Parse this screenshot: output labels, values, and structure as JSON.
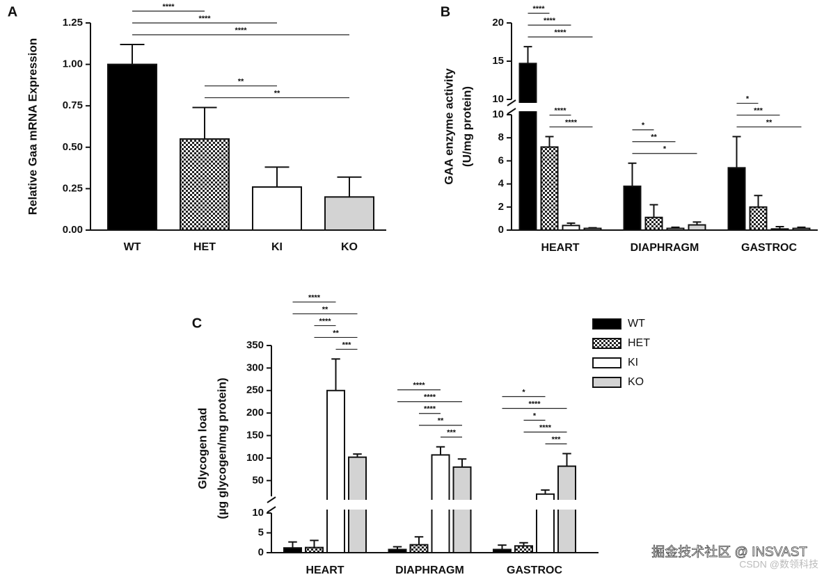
{
  "chart_data": [
    {
      "type": "bar",
      "panel": "A",
      "ylabel": [
        "Relative Gaa mRNA Expression"
      ],
      "categories": [
        "WT",
        "HET",
        "KI",
        "KO"
      ],
      "values": [
        1.0,
        0.55,
        0.26,
        0.2
      ],
      "errors": [
        0.12,
        0.19,
        0.12,
        0.12
      ],
      "colors": [
        "#000000",
        "#ffffff",
        "#ffffff",
        "#d3d3d3"
      ],
      "patterns": [
        null,
        "checkerboard",
        null,
        null
      ],
      "ylim": [
        0,
        1.25
      ],
      "yticks": [
        {
          "value": 0,
          "label": "0.00"
        },
        {
          "value": 0.25,
          "label": "0.25"
        },
        {
          "value": 0.5,
          "label": "0.50"
        },
        {
          "value": 0.75,
          "label": "0.75"
        },
        {
          "value": 1,
          "label": "1.00"
        },
        {
          "value": 1.25,
          "label": "1.25"
        }
      ],
      "annotations": [
        {
          "label": "****",
          "from": 0,
          "to": 1
        },
        {
          "label": "****",
          "from": 0,
          "to": 2
        },
        {
          "label": "****",
          "from": 0,
          "to": 3
        },
        {
          "label": "**",
          "from": 1,
          "to": 2
        },
        {
          "label": "**",
          "from": 1,
          "to": 3
        }
      ]
    },
    {
      "type": "grouped_bar",
      "panel": "B",
      "ylabel": [
        "GAA enzyme activity",
        "(U/mg protein)"
      ],
      "categories": [
        "HEART",
        "DIAPHRAGM",
        "GASTROC"
      ],
      "series": [
        {
          "color": "#000000",
          "values": [
            14.7,
            3.8,
            5.4
          ],
          "errors": [
            2.2,
            2.0,
            2.7
          ]
        },
        {
          "color": "#ffffff",
          "pattern": "checkerboard",
          "values": [
            7.2,
            1.1,
            2.0
          ],
          "errors": [
            0.9,
            1.1,
            1.0
          ]
        },
        {
          "color": "#ffffff",
          "values": [
            0.4,
            0.15,
            0.1
          ],
          "errors": [
            0.2,
            0.1,
            0.2
          ]
        },
        {
          "color": "#d3d3d3",
          "values": [
            0.15,
            0.45,
            0.15
          ],
          "errors": [
            0.05,
            0.25,
            0.1
          ]
        }
      ],
      "segments": [
        {
          "ylim": [
            0,
            10
          ],
          "yticks": [
            0,
            2,
            4,
            6,
            8,
            10
          ]
        },
        {
          "ylim": [
            10,
            20
          ],
          "yticks": [
            10,
            15,
            20
          ]
        }
      ],
      "annotations": [
        {
          "group": 0,
          "from": 0,
          "to": 1,
          "label": "****"
        },
        {
          "group": 0,
          "from": 0,
          "to": 2,
          "label": "****"
        },
        {
          "group": 0,
          "from": 0,
          "to": 3,
          "label": "****"
        },
        {
          "group": 0,
          "from": 1,
          "to": 2,
          "label": "****"
        },
        {
          "group": 0,
          "from": 1,
          "to": 3,
          "label": "****"
        },
        {
          "group": 1,
          "from": 0,
          "to": 1,
          "label": "*"
        },
        {
          "group": 1,
          "from": 0,
          "to": 2,
          "label": "**"
        },
        {
          "group": 1,
          "from": 0,
          "to": 3,
          "label": "*"
        },
        {
          "group": 2,
          "from": 0,
          "to": 1,
          "label": "*"
        },
        {
          "group": 2,
          "from": 0,
          "to": 2,
          "label": "***"
        },
        {
          "group": 2,
          "from": 0,
          "to": 3,
          "label": "**"
        }
      ]
    },
    {
      "type": "grouped_bar",
      "panel": "C",
      "ylabel": [
        "Glycogen load",
        "(µg glycogen/mg protein)"
      ],
      "categories": [
        "HEART",
        "DIAPHRAGM",
        "GASTROC"
      ],
      "series": [
        {
          "name": "WT",
          "color": "#000000",
          "values": [
            1.2,
            0.8,
            0.8
          ],
          "errors": [
            1.5,
            0.7,
            1.1
          ]
        },
        {
          "name": "HET",
          "color": "#ffffff",
          "pattern": "checkerboard",
          "values": [
            1.3,
            2.0,
            1.7
          ],
          "errors": [
            1.8,
            2.0,
            0.8
          ]
        },
        {
          "name": "KI",
          "color": "#ffffff",
          "values": [
            250,
            107,
            20
          ],
          "errors": [
            70,
            18,
            9
          ]
        },
        {
          "name": "KO",
          "color": "#d3d3d3",
          "values": [
            102,
            80,
            82
          ],
          "errors": [
            7,
            18,
            28
          ]
        }
      ],
      "segments": [
        {
          "ylim": [
            0,
            10
          ],
          "yticks": [
            0,
            5,
            10
          ]
        },
        {
          "ylim": [
            15,
            350
          ],
          "yticks": [
            50,
            100,
            150,
            200,
            250,
            300,
            350
          ]
        }
      ],
      "legend": "right",
      "annotations": [
        {
          "group": 0,
          "from": 0,
          "to": 2,
          "label": "****"
        },
        {
          "group": 0,
          "from": 0,
          "to": 3,
          "label": "**"
        },
        {
          "group": 0,
          "from": 1,
          "to": 2,
          "label": "****"
        },
        {
          "group": 0,
          "from": 1,
          "to": 3,
          "label": "**"
        },
        {
          "group": 0,
          "from": 2,
          "to": 3,
          "label": "***"
        },
        {
          "group": 1,
          "from": 0,
          "to": 2,
          "label": "****"
        },
        {
          "group": 1,
          "from": 0,
          "to": 3,
          "label": "****"
        },
        {
          "group": 1,
          "from": 1,
          "to": 2,
          "label": "****"
        },
        {
          "group": 1,
          "from": 1,
          "to": 3,
          "label": "**"
        },
        {
          "group": 1,
          "from": 2,
          "to": 3,
          "label": "***"
        },
        {
          "group": 2,
          "from": 0,
          "to": 2,
          "label": "*"
        },
        {
          "group": 2,
          "from": 0,
          "to": 3,
          "label": "****"
        },
        {
          "group": 2,
          "from": 1,
          "to": 2,
          "label": "*"
        },
        {
          "group": 2,
          "from": 1,
          "to": 3,
          "label": "****"
        },
        {
          "group": 2,
          "from": 2,
          "to": 3,
          "label": "***"
        }
      ]
    }
  ],
  "watermarks": [
    "掘金技术社区 @ INSVAST",
    "CSDN @数领科技"
  ]
}
